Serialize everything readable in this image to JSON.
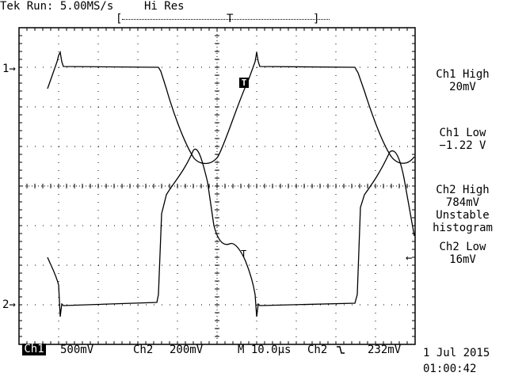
{
  "header": {
    "status": "Tek Run: 5.00MS/s",
    "mode": "Hi Res",
    "record_left": "[",
    "record_right": "]",
    "record_trigger": "T"
  },
  "markers": {
    "ch1_level": "1→",
    "ch2_level": "2→",
    "trigger_level": "←",
    "trigger_point": "T",
    "trace_trigger": "T"
  },
  "measurements": [
    {
      "title": "Ch1 High",
      "value": "20mV"
    },
    {
      "title": "Ch1 Low",
      "value": "−1.22 V"
    },
    {
      "title": "Ch2 High",
      "value": "784mV",
      "extra": [
        "Unstable",
        "histogram"
      ]
    },
    {
      "title": "Ch2 Low",
      "value": "16mV"
    }
  ],
  "footer": {
    "ch1_label": "Ch1",
    "ch1_scale": "500mV",
    "ch2_label": "Ch2",
    "ch2_scale": "200mV",
    "timebase": "M 10.0µs",
    "trigger_source": "Ch2",
    "trigger_slope_icon": "falling-edge-icon",
    "trigger_slope_glyph": "⿺",
    "trigger_level": "232mV",
    "date": "1 Jul 2015",
    "time": "01:00:42"
  },
  "colors": {
    "trace": "#000000",
    "graticule": "#000000",
    "background": "#ffffff"
  }
}
